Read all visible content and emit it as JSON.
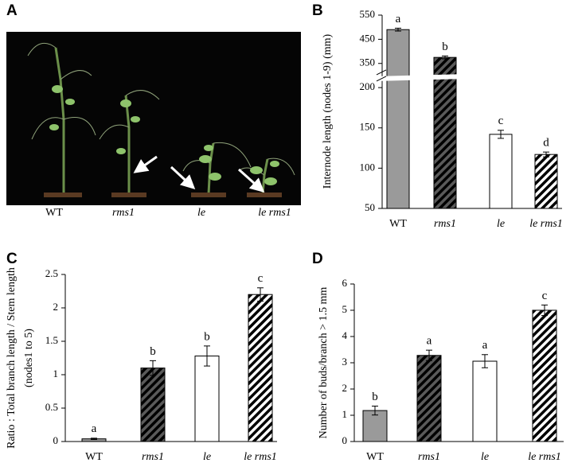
{
  "photo_panel": {
    "panel_label": "A",
    "captions": [
      "WT",
      "rms1",
      "le",
      "le rms1"
    ]
  },
  "chart_data": [
    {
      "type": "bar",
      "panel_label": "B",
      "ylabel": [
        "Internode length (nodes 1-9) (mm)"
      ],
      "categories": [
        "WT",
        "rms1",
        "le",
        "le rms1"
      ],
      "values": [
        490,
        375,
        142,
        117
      ],
      "errors": [
        6,
        6,
        5,
        3
      ],
      "letters": [
        "a",
        "b",
        "c",
        "d"
      ],
      "colors": [
        "#9a9a9a",
        "#5a5a5a",
        "#ffffff",
        "#ffffff"
      ],
      "hatch": [
        false,
        true,
        false,
        true
      ],
      "ylim": [
        50,
        550
      ],
      "yticks": [
        50,
        100,
        150,
        200,
        350,
        450,
        550
      ],
      "axis_break": [
        200,
        350
      ]
    },
    {
      "type": "bar",
      "panel_label": "C",
      "ylabel": [
        "Ratio : Total branch length / Stem length",
        "(nodes1 to 5)"
      ],
      "categories": [
        "WT",
        "rms1",
        "le",
        "le rms1"
      ],
      "values": [
        0.04,
        1.1,
        1.28,
        2.2
      ],
      "errors": [
        0.01,
        0.11,
        0.15,
        0.1
      ],
      "letters": [
        "a",
        "b",
        "b",
        "c"
      ],
      "colors": [
        "#9a9a9a",
        "#5a5a5a",
        "#ffffff",
        "#ffffff"
      ],
      "hatch": [
        false,
        true,
        false,
        true
      ],
      "ylim": [
        0,
        2.5
      ],
      "yticks": [
        0,
        0.5,
        1,
        1.5,
        2,
        2.5
      ]
    },
    {
      "type": "bar",
      "panel_label": "D",
      "ylabel": [
        "Number of buds/branch > 1.5 mm"
      ],
      "categories": [
        "WT",
        "rms1",
        "le",
        "le rms1"
      ],
      "values": [
        1.18,
        3.28,
        3.06,
        5.0
      ],
      "errors": [
        0.17,
        0.2,
        0.25,
        0.2
      ],
      "letters": [
        "b",
        "a",
        "a",
        "c"
      ],
      "colors": [
        "#9a9a9a",
        "#5a5a5a",
        "#ffffff",
        "#ffffff"
      ],
      "hatch": [
        false,
        true,
        false,
        true
      ],
      "ylim": [
        0,
        6
      ],
      "yticks": [
        0,
        1,
        2,
        3,
        4,
        5,
        6
      ]
    }
  ]
}
